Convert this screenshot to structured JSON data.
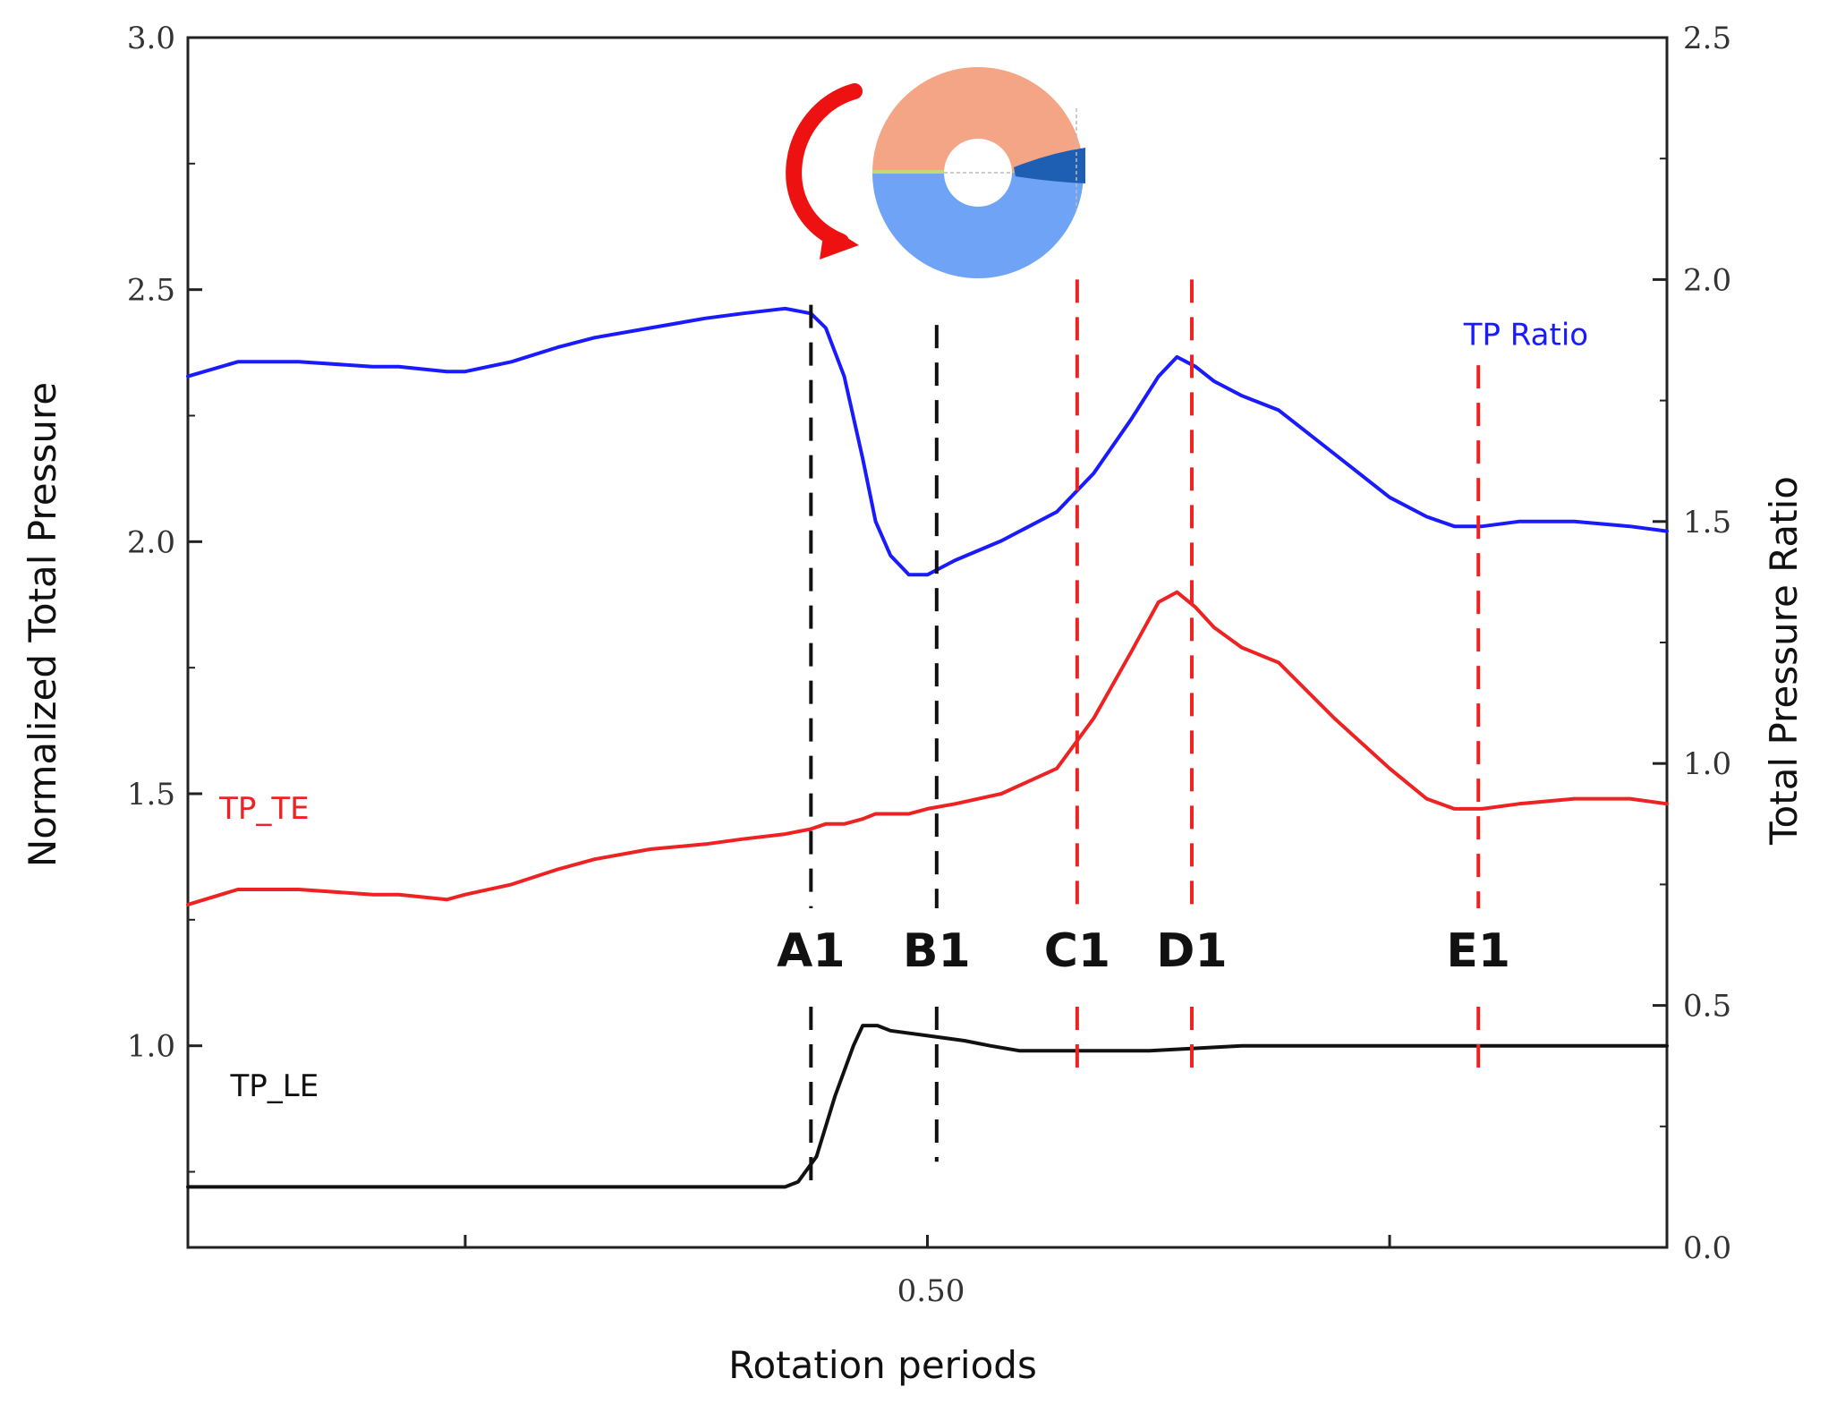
{
  "chart_data": {
    "type": "line",
    "title": "",
    "xlabel": "Rotation periods",
    "ylabel_left": "Normalized Total Pressure",
    "ylabel_right": "Total Pressure Ratio",
    "xlim": [
      0.1,
      0.9
    ],
    "ylim_left": [
      0.6,
      3.0
    ],
    "ylim_right": [
      0.0,
      2.5
    ],
    "x_ticks": [
      0.25,
      0.5,
      0.75
    ],
    "x_tick_labels": [
      "",
      "0.50",
      ""
    ],
    "y_left_ticks": [
      1.0,
      1.5,
      2.0,
      2.5,
      3.0
    ],
    "y_left_tick_labels": [
      "1.0",
      "1.5",
      "2.0",
      "2.5",
      "3.0"
    ],
    "y_right_ticks": [
      0.0,
      0.5,
      1.0,
      1.5,
      2.0,
      2.5
    ],
    "y_right_tick_labels": [
      "0.0",
      "0.5",
      "1.0",
      "1.5",
      "2.0",
      "2.5"
    ],
    "grid": false,
    "series": [
      {
        "name": "TP Ratio",
        "axis": "right",
        "color": "#1a1aff",
        "x": [
          0.1,
          0.127,
          0.16,
          0.2,
          0.214,
          0.24,
          0.25,
          0.275,
          0.3,
          0.32,
          0.35,
          0.38,
          0.4,
          0.423,
          0.437,
          0.445,
          0.455,
          0.465,
          0.472,
          0.48,
          0.49,
          0.5,
          0.515,
          0.54,
          0.57,
          0.59,
          0.61,
          0.625,
          0.635,
          0.645,
          0.655,
          0.67,
          0.69,
          0.72,
          0.75,
          0.77,
          0.785,
          0.8,
          0.82,
          0.85,
          0.88,
          0.9
        ],
        "y": [
          1.8,
          1.83,
          1.83,
          1.82,
          1.82,
          1.81,
          1.81,
          1.83,
          1.86,
          1.88,
          1.9,
          1.92,
          1.93,
          1.94,
          1.93,
          1.9,
          1.8,
          1.63,
          1.5,
          1.43,
          1.39,
          1.39,
          1.42,
          1.46,
          1.52,
          1.6,
          1.71,
          1.8,
          1.84,
          1.82,
          1.79,
          1.76,
          1.73,
          1.64,
          1.55,
          1.51,
          1.49,
          1.49,
          1.5,
          1.5,
          1.49,
          1.48
        ]
      },
      {
        "name": "TP_TE",
        "axis": "left",
        "color": "#ee2222",
        "x": [
          0.1,
          0.127,
          0.16,
          0.2,
          0.214,
          0.24,
          0.25,
          0.275,
          0.3,
          0.32,
          0.35,
          0.38,
          0.4,
          0.423,
          0.437,
          0.445,
          0.455,
          0.465,
          0.472,
          0.48,
          0.49,
          0.5,
          0.515,
          0.54,
          0.57,
          0.59,
          0.61,
          0.625,
          0.635,
          0.645,
          0.655,
          0.67,
          0.69,
          0.72,
          0.75,
          0.77,
          0.785,
          0.8,
          0.82,
          0.85,
          0.88,
          0.9
        ],
        "y": [
          1.28,
          1.31,
          1.31,
          1.3,
          1.3,
          1.29,
          1.3,
          1.32,
          1.35,
          1.37,
          1.39,
          1.4,
          1.41,
          1.42,
          1.43,
          1.44,
          1.44,
          1.45,
          1.46,
          1.46,
          1.46,
          1.47,
          1.48,
          1.5,
          1.55,
          1.65,
          1.78,
          1.88,
          1.9,
          1.87,
          1.83,
          1.79,
          1.76,
          1.65,
          1.55,
          1.49,
          1.47,
          1.47,
          1.48,
          1.49,
          1.49,
          1.48
        ]
      },
      {
        "name": "TP_LE",
        "axis": "left",
        "color": "#111111",
        "x": [
          0.1,
          0.16,
          0.25,
          0.3,
          0.37,
          0.4,
          0.423,
          0.43,
          0.44,
          0.45,
          0.46,
          0.465,
          0.473,
          0.48,
          0.5,
          0.52,
          0.534,
          0.55,
          0.58,
          0.62,
          0.67,
          0.72,
          0.8,
          0.85,
          0.9
        ],
        "y": [
          0.72,
          0.72,
          0.72,
          0.72,
          0.72,
          0.72,
          0.72,
          0.73,
          0.78,
          0.9,
          1.0,
          1.04,
          1.04,
          1.03,
          1.02,
          1.01,
          1.0,
          0.99,
          0.99,
          0.99,
          1.0,
          1.0,
          1.0,
          1.0,
          1.0
        ]
      }
    ],
    "series_labels": [
      {
        "text": "TP Ratio",
        "color": "#1a1aff",
        "x": 0.79,
        "y_left": 2.39
      },
      {
        "text": "TP_TE",
        "color": "#ee2222",
        "x": 0.117,
        "y_left": 1.45
      },
      {
        "text": "TP_LE",
        "color": "#111111",
        "x": 0.123,
        "y_left": 0.9
      }
    ],
    "markers": [
      {
        "label": "A1",
        "x": 0.437,
        "color": "#111111",
        "y_from": 2.47,
        "y_to": 0.71
      },
      {
        "label": "B1",
        "x": 0.505,
        "color": "#111111",
        "y_from": 2.43,
        "y_to": 0.77
      },
      {
        "label": "C1",
        "x": 0.581,
        "color": "#ee2222",
        "y_from": 2.52,
        "y_to": 0.94
      },
      {
        "label": "D1",
        "x": 0.643,
        "color": "#ee2222",
        "y_from": 2.52,
        "y_to": 0.94
      },
      {
        "label": "E1",
        "x": 0.798,
        "color": "#ee2222",
        "y_from": 2.35,
        "y_to": 0.94
      }
    ],
    "annotations": [
      {
        "type": "rotating-annulus-inset",
        "colors": [
          "#f4a585",
          "#6fa3f5",
          "#1f5fb3",
          "#ee1111"
        ]
      }
    ]
  }
}
